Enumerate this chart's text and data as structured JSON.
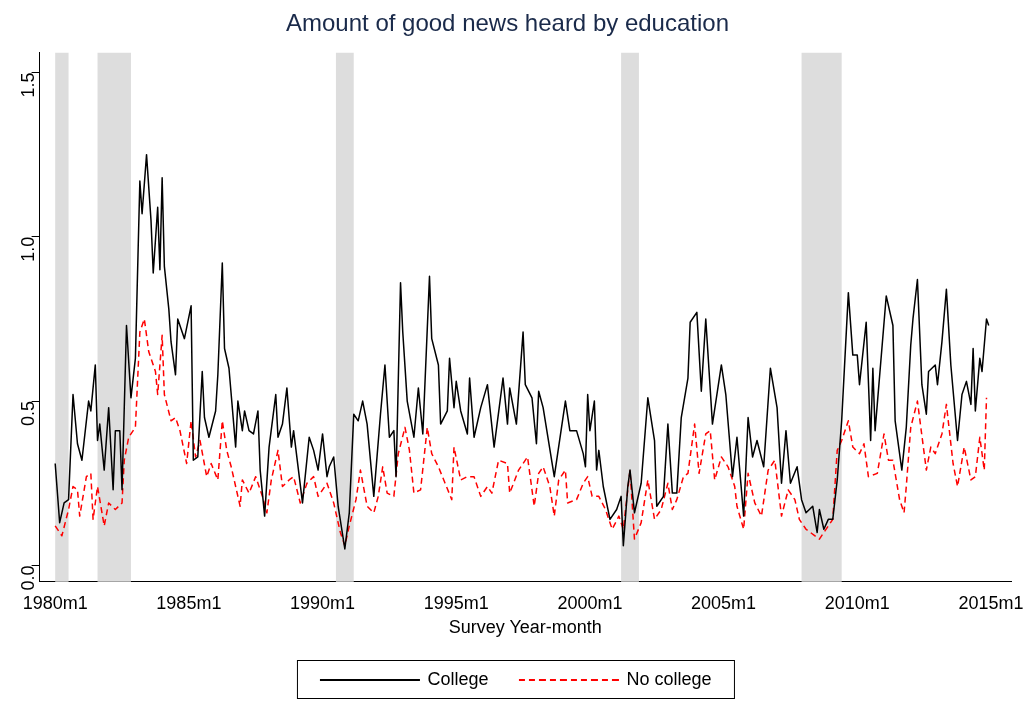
{
  "chart_data": {
    "type": "line",
    "title": "Amount of good news heard by education",
    "xlabel": "Survey Year-month",
    "xlim": [
      "1979-06",
      "2015-10"
    ],
    "xticks": [
      {
        "value": "1980-01",
        "label": "1980m1"
      },
      {
        "value": "1985-01",
        "label": "1985m1"
      },
      {
        "value": "1990-01",
        "label": "1990m1"
      },
      {
        "value": "1995-01",
        "label": "1995m1"
      },
      {
        "value": "2000-01",
        "label": "2000m1"
      },
      {
        "value": "2005-01",
        "label": "2005m1"
      },
      {
        "value": "2010-01",
        "label": "2010m1"
      },
      {
        "value": "2015-01",
        "label": "2015m1"
      }
    ],
    "ylim": [
      -0.05,
      1.56
    ],
    "yticks": [
      {
        "value": 0,
        "label": "0.0"
      },
      {
        "value": 0.5,
        "label": "0.5"
      },
      {
        "value": 1,
        "label": "1.0"
      },
      {
        "value": 1.5,
        "label": "1.5"
      }
    ],
    "grid": false,
    "legend": "bottom",
    "marker": "none",
    "bands": [
      {
        "axis": "x",
        "from": "1980-01",
        "to": "1980-07",
        "color": "#dddddd"
      },
      {
        "axis": "x",
        "from": "1981-08",
        "to": "1982-11",
        "color": "#dddddd"
      },
      {
        "axis": "x",
        "from": "1990-07",
        "to": "1991-03",
        "color": "#dddddd"
      },
      {
        "axis": "x",
        "from": "2001-03",
        "to": "2001-11",
        "color": "#dddddd"
      },
      {
        "axis": "x",
        "from": "2007-12",
        "to": "2009-06",
        "color": "#dddddd"
      }
    ],
    "series": [
      {
        "name": "College",
        "color": "#000000",
        "line_style": "solid",
        "x": [
          "1980-01",
          "1980-03",
          "1980-05",
          "1980-07",
          "1980-09",
          "1980-11",
          "1981-01",
          "1981-04",
          "1981-05",
          "1981-07",
          "1981-08",
          "1981-09",
          "1981-11",
          "1982-01",
          "1982-03",
          "1982-04",
          "1982-06",
          "1982-07",
          "1982-09",
          "1982-11",
          "1983-01",
          "1983-03",
          "1983-04",
          "1983-06",
          "1983-08",
          "1983-09",
          "1983-11",
          "1983-12",
          "1984-01",
          "1984-02",
          "1984-04",
          "1984-05",
          "1984-07",
          "1984-08",
          "1984-11",
          "1985-02",
          "1985-03",
          "1985-05",
          "1985-07",
          "1985-08",
          "1985-10",
          "1986-01",
          "1986-02",
          "1986-04",
          "1986-05",
          "1986-07",
          "1986-10",
          "1986-11",
          "1987-01",
          "1987-02",
          "1987-04",
          "1987-06",
          "1987-08",
          "1987-09",
          "1987-11",
          "1988-01",
          "1988-04",
          "1988-05",
          "1988-07",
          "1988-09",
          "1988-11",
          "1988-12",
          "1989-04",
          "1989-07",
          "1989-09",
          "1989-11",
          "1990-01",
          "1990-03",
          "1990-04",
          "1990-06",
          "1990-08",
          "1990-11",
          "1991-01",
          "1991-03",
          "1991-05",
          "1991-07",
          "1991-09",
          "1991-12",
          "1992-03",
          "1992-05",
          "1992-07",
          "1992-09",
          "1992-10",
          "1992-12",
          "1993-01",
          "1993-03",
          "1993-06",
          "1993-08",
          "1993-10",
          "1994-01",
          "1994-02",
          "1994-05",
          "1994-06",
          "1994-09",
          "1994-10",
          "1994-12",
          "1995-01",
          "1995-03",
          "1995-06",
          "1995-07",
          "1995-09",
          "1995-12",
          "1996-03",
          "1996-06",
          "1996-10",
          "1996-12",
          "1997-01",
          "1997-04",
          "1997-07",
          "1997-08",
          "1997-11",
          "1998-01",
          "1998-02",
          "1998-04",
          "1998-09",
          "1999-02",
          "1999-04",
          "1999-07",
          "1999-10",
          "1999-11",
          "1999-12",
          "2000-01",
          "2000-03",
          "2000-04",
          "2000-05",
          "2000-07",
          "2000-10",
          "2001-01",
          "2001-03",
          "2001-04",
          "2001-06",
          "2001-07",
          "2001-09",
          "2001-12",
          "2002-03",
          "2002-06",
          "2002-07",
          "2002-10",
          "2002-12",
          "2003-02",
          "2003-04",
          "2003-06",
          "2003-09",
          "2003-10",
          "2004-01",
          "2004-03",
          "2004-05",
          "2004-08",
          "2004-12",
          "2005-02",
          "2005-05",
          "2005-07",
          "2005-10",
          "2005-12",
          "2006-02",
          "2006-04",
          "2006-07",
          "2006-10",
          "2007-01",
          "2007-03",
          "2007-05",
          "2007-07",
          "2007-10",
          "2007-12",
          "2008-02",
          "2008-05",
          "2008-07",
          "2008-08",
          "2008-10",
          "2008-12",
          "2009-02",
          "2009-04",
          "2009-06",
          "2009-09",
          "2009-11",
          "2010-01",
          "2010-02",
          "2010-05",
          "2010-07",
          "2010-08",
          "2010-09",
          "2011-02",
          "2011-05",
          "2011-06",
          "2011-09",
          "2011-11",
          "2012-01",
          "2012-02",
          "2012-04",
          "2012-06",
          "2012-08",
          "2012-09",
          "2012-12",
          "2013-01",
          "2013-03",
          "2013-05",
          "2013-07",
          "2013-10",
          "2013-12",
          "2014-02",
          "2014-04",
          "2014-05",
          "2014-06",
          "2014-08",
          "2014-09",
          "2014-11",
          "2014-12"
        ],
        "values": [
          0.31,
          0.13,
          0.19,
          0.2,
          0.52,
          0.37,
          0.32,
          0.5,
          0.47,
          0.61,
          0.38,
          0.43,
          0.29,
          0.48,
          0.23,
          0.41,
          0.41,
          0.23,
          0.73,
          0.51,
          0.63,
          1.17,
          1.07,
          1.25,
          1.05,
          0.89,
          1.09,
          0.9,
          1.18,
          0.91,
          0.78,
          0.68,
          0.58,
          0.75,
          0.69,
          0.79,
          0.32,
          0.33,
          0.59,
          0.45,
          0.39,
          0.47,
          0.58,
          0.92,
          0.66,
          0.6,
          0.36,
          0.5,
          0.41,
          0.47,
          0.41,
          0.4,
          0.47,
          0.29,
          0.15,
          0.36,
          0.52,
          0.39,
          0.43,
          0.54,
          0.36,
          0.41,
          0.19,
          0.39,
          0.35,
          0.29,
          0.4,
          0.27,
          0.3,
          0.33,
          0.18,
          0.05,
          0.16,
          0.46,
          0.44,
          0.5,
          0.43,
          0.21,
          0.46,
          0.61,
          0.39,
          0.41,
          0.27,
          0.86,
          0.71,
          0.5,
          0.39,
          0.54,
          0.4,
          0.88,
          0.69,
          0.61,
          0.43,
          0.47,
          0.63,
          0.48,
          0.56,
          0.47,
          0.4,
          0.57,
          0.39,
          0.48,
          0.55,
          0.36,
          0.57,
          0.43,
          0.54,
          0.43,
          0.71,
          0.55,
          0.51,
          0.37,
          0.53,
          0.48,
          0.27,
          0.5,
          0.41,
          0.41,
          0.34,
          0.3,
          0.52,
          0.41,
          0.5,
          0.29,
          0.35,
          0.24,
          0.14,
          0.17,
          0.21,
          0.06,
          0.24,
          0.29,
          0.16,
          0.25,
          0.51,
          0.38,
          0.18,
          0.21,
          0.43,
          0.22,
          0.22,
          0.45,
          0.57,
          0.74,
          0.77,
          0.53,
          0.75,
          0.43,
          0.61,
          0.52,
          0.27,
          0.39,
          0.15,
          0.45,
          0.33,
          0.38,
          0.3,
          0.6,
          0.48,
          0.25,
          0.41,
          0.25,
          0.3,
          0.2,
          0.16,
          0.18,
          0.1,
          0.17,
          0.11,
          0.14,
          0.14,
          0.26,
          0.44,
          0.83,
          0.64,
          0.64,
          0.55,
          0.74,
          0.38,
          0.6,
          0.41,
          0.82,
          0.73,
          0.44,
          0.29,
          0.42,
          0.67,
          0.75,
          0.87,
          0.55,
          0.46,
          0.59,
          0.61,
          0.55,
          0.68,
          0.84,
          0.61,
          0.38,
          0.52,
          0.56,
          0.49,
          0.66,
          0.47,
          0.63,
          0.59,
          0.75,
          0.73
        ]
      },
      {
        "name": "No college",
        "color": "#ff0000",
        "line_style": "dashed",
        "x": [
          "1980-01",
          "1980-04",
          "1980-07",
          "1980-09",
          "1980-11",
          "1980-12",
          "1981-03",
          "1981-05",
          "1981-06",
          "1981-08",
          "1981-11",
          "1982-01",
          "1982-04",
          "1982-07",
          "1982-08",
          "1982-10",
          "1983-01",
          "1983-03",
          "1983-05",
          "1983-07",
          "1983-10",
          "1983-11",
          "1984-01",
          "1984-02",
          "1984-05",
          "1984-07",
          "1984-09",
          "1984-12",
          "1985-02",
          "1985-04",
          "1985-06",
          "1985-09",
          "1985-11",
          "1986-02",
          "1986-04",
          "1986-06",
          "1986-08",
          "1986-12",
          "1987-01",
          "1987-04",
          "1987-07",
          "1987-10",
          "1987-12",
          "1988-02",
          "1988-05",
          "1988-07",
          "1988-10",
          "1988-12",
          "1989-03",
          "1989-06",
          "1989-09",
          "1989-11",
          "1990-01",
          "1990-03",
          "1990-06",
          "1990-09",
          "1990-11",
          "1991-01",
          "1991-04",
          "1991-06",
          "1991-09",
          "1991-12",
          "1992-02",
          "1992-04",
          "1992-06",
          "1992-09",
          "1992-11",
          "1993-02",
          "1993-04",
          "1993-06",
          "1993-09",
          "1993-12",
          "1994-02",
          "1994-05",
          "1994-08",
          "1994-11",
          "1994-12",
          "1995-03",
          "1995-06",
          "1995-09",
          "1995-12",
          "1996-03",
          "1996-05",
          "1996-08",
          "1996-12",
          "1997-01",
          "1997-05",
          "1997-09",
          "1997-12",
          "1998-02",
          "1998-04",
          "1998-07",
          "1998-09",
          "1998-11",
          "1999-02",
          "1999-03",
          "1999-07",
          "1999-10",
          "1999-12",
          "2000-02",
          "2000-05",
          "2000-08",
          "2000-11",
          "2001-02",
          "2001-04",
          "2001-07",
          "2001-09",
          "2001-12",
          "2002-03",
          "2002-06",
          "2002-09",
          "2002-12",
          "2003-02",
          "2003-04",
          "2003-07",
          "2003-09",
          "2003-12",
          "2004-02",
          "2004-05",
          "2004-07",
          "2004-09",
          "2004-12",
          "2005-03",
          "2005-06",
          "2005-07",
          "2005-10",
          "2005-12",
          "2006-03",
          "2006-06",
          "2006-09",
          "2006-12",
          "2007-03",
          "2007-06",
          "2007-09",
          "2007-11",
          "2008-02",
          "2008-08",
          "2008-10",
          "2009-02",
          "2009-04",
          "2009-06",
          "2009-09",
          "2009-11",
          "2010-02",
          "2010-04",
          "2010-06",
          "2010-10",
          "2011-01",
          "2011-03",
          "2011-05",
          "2011-08",
          "2011-10",
          "2011-11",
          "2012-01",
          "2012-04",
          "2012-08",
          "2012-10",
          "2012-12",
          "2013-03",
          "2013-05",
          "2013-08",
          "2013-10",
          "2014-01",
          "2014-04",
          "2014-06",
          "2014-08",
          "2014-10",
          "2014-11"
        ],
        "values": [
          0.12,
          0.09,
          0.17,
          0.24,
          0.23,
          0.15,
          0.27,
          0.28,
          0.14,
          0.24,
          0.12,
          0.19,
          0.17,
          0.19,
          0.32,
          0.39,
          0.42,
          0.71,
          0.75,
          0.65,
          0.59,
          0.52,
          0.7,
          0.52,
          0.44,
          0.45,
          0.41,
          0.31,
          0.44,
          0.33,
          0.38,
          0.27,
          0.31,
          0.26,
          0.44,
          0.35,
          0.3,
          0.18,
          0.26,
          0.22,
          0.27,
          0.21,
          0.16,
          0.26,
          0.35,
          0.24,
          0.26,
          0.27,
          0.19,
          0.25,
          0.27,
          0.21,
          0.23,
          0.25,
          0.19,
          0.1,
          0.06,
          0.12,
          0.2,
          0.29,
          0.18,
          0.16,
          0.21,
          0.3,
          0.22,
          0.21,
          0.34,
          0.42,
          0.35,
          0.22,
          0.23,
          0.42,
          0.34,
          0.3,
          0.25,
          0.2,
          0.36,
          0.26,
          0.27,
          0.27,
          0.21,
          0.24,
          0.22,
          0.32,
          0.31,
          0.22,
          0.29,
          0.33,
          0.18,
          0.28,
          0.3,
          0.24,
          0.15,
          0.26,
          0.29,
          0.19,
          0.2,
          0.25,
          0.27,
          0.21,
          0.21,
          0.17,
          0.11,
          0.15,
          0.11,
          0.29,
          0.08,
          0.13,
          0.26,
          0.14,
          0.17,
          0.25,
          0.17,
          0.2,
          0.27,
          0.28,
          0.43,
          0.28,
          0.4,
          0.41,
          0.26,
          0.33,
          0.3,
          0.24,
          0.18,
          0.11,
          0.28,
          0.19,
          0.15,
          0.29,
          0.32,
          0.15,
          0.23,
          0.2,
          0.14,
          0.11,
          0.08,
          0.1,
          0.14,
          0.35,
          0.38,
          0.44,
          0.36,
          0.34,
          0.37,
          0.27,
          0.28,
          0.4,
          0.32,
          0.32,
          0.2,
          0.16,
          0.24,
          0.42,
          0.5,
          0.29,
          0.36,
          0.34,
          0.4,
          0.49,
          0.31,
          0.24,
          0.36,
          0.26,
          0.27,
          0.39,
          0.29,
          0.51
        ]
      }
    ]
  }
}
